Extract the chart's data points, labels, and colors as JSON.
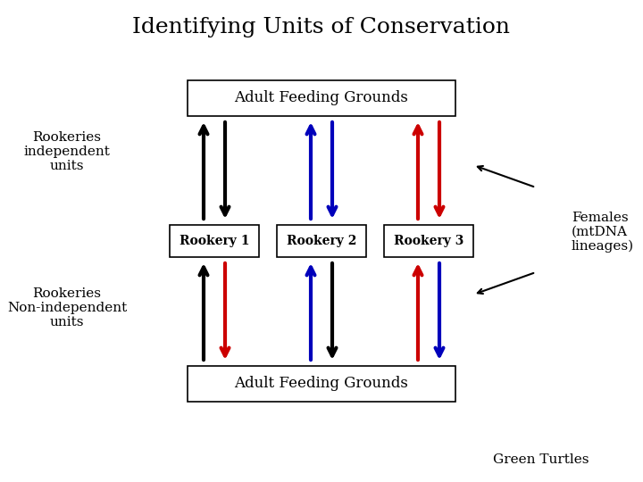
{
  "title": "Identifying Units of Conservation",
  "title_fontsize": 18,
  "bg_color": "#ffffff",
  "box_top_label": "Adult Feeding Grounds",
  "box_bottom_label": "Adult Feeding Grounds",
  "rookery_labels": [
    "Rookery 1",
    "Rookery 2",
    "Rookery 3"
  ],
  "left_label_top": "Rookeries\nindependent\nunits",
  "left_label_bottom": "Rookeries\nNon-independent\nunits",
  "right_label": "Females\n(mtDNA\nlineages)",
  "bottom_right_label": "Green Turtles",
  "top_arrows_left_colors": [
    "#000000",
    "#0000bb",
    "#cc0000"
  ],
  "top_arrows_right_colors": [
    "#000000",
    "#0000bb",
    "#cc0000"
  ],
  "top_arrows_left_up": [
    true,
    true,
    true
  ],
  "top_arrows_right_up": [
    false,
    false,
    false
  ],
  "bot_arrows_left_colors": [
    "#000000",
    "#0000bb",
    "#cc0000"
  ],
  "bot_arrows_right_colors": [
    "#cc0000",
    "#000000",
    "#0000bb"
  ],
  "bot_arrows_left_up": [
    true,
    true,
    true
  ],
  "bot_arrows_right_up": [
    false,
    false,
    false
  ]
}
